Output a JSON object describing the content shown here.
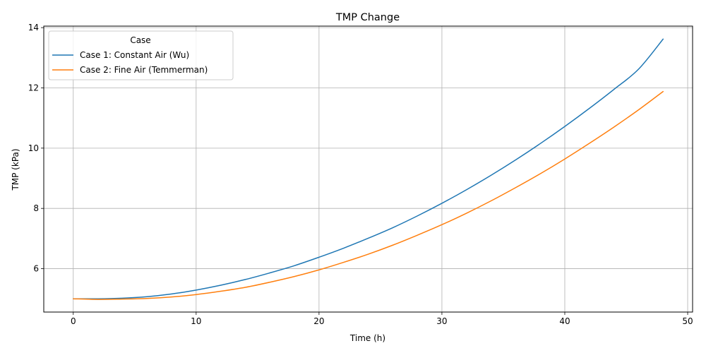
{
  "chart_data": {
    "type": "line",
    "title": "TMP Change",
    "xlabel": "Time (h)",
    "ylabel": "TMP (kPa)",
    "xlim": [
      -2.4,
      50.4
    ],
    "ylim": [
      4.56,
      14.05
    ],
    "xticks": [
      0,
      10,
      20,
      30,
      40,
      50
    ],
    "yticks": [
      6,
      8,
      10,
      12,
      14
    ],
    "grid": true,
    "legend": {
      "title": "Case",
      "placement": "top-left"
    },
    "x": [
      0,
      2,
      4,
      6,
      8,
      10,
      12,
      14,
      16,
      18,
      20,
      22,
      24,
      26,
      28,
      30,
      32,
      34,
      36,
      38,
      40,
      42,
      44,
      46,
      48
    ],
    "series": [
      {
        "name": "Case 1: Constant Air (Wu)",
        "color": "#1f77b4",
        "values": [
          5.0,
          5.0,
          5.02,
          5.07,
          5.16,
          5.29,
          5.45,
          5.64,
          5.86,
          6.1,
          6.38,
          6.68,
          7.01,
          7.36,
          7.75,
          8.17,
          8.62,
          9.1,
          9.61,
          10.15,
          10.72,
          11.32,
          11.95,
          12.62,
          13.62
        ]
      },
      {
        "name": "Case 2: Fine Air (Temmerman)",
        "color": "#ff7f0e",
        "values": [
          5.0,
          4.98,
          4.99,
          5.01,
          5.06,
          5.14,
          5.25,
          5.38,
          5.55,
          5.74,
          5.96,
          6.21,
          6.48,
          6.78,
          7.11,
          7.46,
          7.84,
          8.25,
          8.69,
          9.15,
          9.64,
          10.16,
          10.7,
          11.27,
          11.88
        ]
      }
    ]
  }
}
